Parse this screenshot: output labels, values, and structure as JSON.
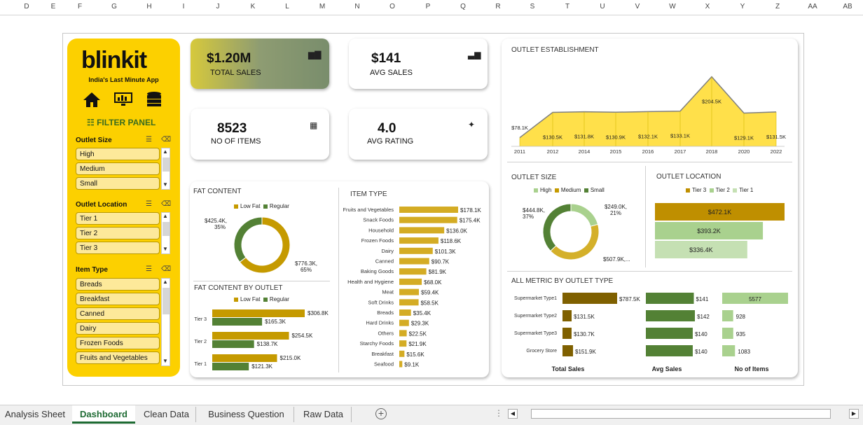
{
  "columns": [
    "D",
    "E",
    "F",
    "G",
    "H",
    "I",
    "J",
    "K",
    "L",
    "M",
    "N",
    "O",
    "P",
    "Q",
    "R",
    "S",
    "T",
    "U",
    "V",
    "W",
    "X",
    "Y",
    "Z",
    "AA",
    "AB"
  ],
  "brand": {
    "name": "blinkit",
    "tagline": "India's Last Minute App",
    "filter_panel": "FILTER PANEL"
  },
  "kpis": {
    "total_sales": {
      "value": "$1.20M",
      "label": "TOTAL SALES"
    },
    "avg_sales": {
      "value": "$141",
      "label": "AVG SALES"
    },
    "items": {
      "value": "8523",
      "label": "NO OF ITEMS"
    },
    "avg_rating": {
      "value": "4.0",
      "label": "AVG RATING"
    }
  },
  "slicers": {
    "outlet_size": {
      "title": "Outlet Size",
      "items": [
        "High",
        "Medium",
        "Small"
      ]
    },
    "outlet_location": {
      "title": "Outlet Location",
      "items": [
        "Tier 1",
        "Tier 2",
        "Tier 3"
      ]
    },
    "item_type": {
      "title": "Item Type",
      "items": [
        "Breads",
        "Breakfast",
        "Canned",
        "Dairy",
        "Frozen Foods",
        "Fruits and Vegetables"
      ]
    }
  },
  "colors": {
    "gold": "#c59a00",
    "green": "#538135",
    "dark": "#7f6000",
    "light_green": "#a9d18e",
    "pale_green": "#c5e0b3",
    "yellow": "#fcd000"
  },
  "chart_data": [
    {
      "id": "outlet_establishment",
      "type": "area",
      "title": "OUTLET ESTABLISHMENT",
      "x": [
        2011,
        2012,
        2014,
        2015,
        2016,
        2017,
        2018,
        2020,
        2022
      ],
      "values": [
        78.1,
        130.5,
        131.8,
        130.9,
        132.1,
        133.1,
        204.5,
        129.1,
        131.5
      ],
      "labels": [
        "$78.1K",
        "$130.5K",
        "$131.8K",
        "$130.9K",
        "$132.1K",
        "$133.1K",
        "$204.5K",
        "$129.1K",
        "$131.5K"
      ]
    },
    {
      "id": "fat_content",
      "type": "pie",
      "title": "FAT CONTENT",
      "legend": [
        "Low Fat",
        "Regular"
      ],
      "values": [
        776.3,
        425.4
      ],
      "labels": [
        "$776.3K, 65%",
        "$425.4K, 35%"
      ]
    },
    {
      "id": "item_type",
      "type": "bar",
      "title": "ITEM TYPE",
      "categories": [
        "Fruits and Vegetables",
        "Snack Foods",
        "Household",
        "Frozen Foods",
        "Dairy",
        "Canned",
        "Baking Goods",
        "Health and Hygiene",
        "Meat",
        "Soft Drinks",
        "Breads",
        "Hard Drinks",
        "Others",
        "Starchy Foods",
        "Breakfast",
        "Seafood"
      ],
      "values": [
        178.1,
        175.4,
        136.0,
        118.6,
        101.3,
        90.7,
        81.9,
        68.0,
        59.4,
        58.5,
        35.4,
        29.3,
        22.5,
        21.9,
        15.6,
        9.1
      ],
      "labels": [
        "$178.1K",
        "$175.4K",
        "$136.0K",
        "$118.6K",
        "$101.3K",
        "$90.7K",
        "$81.9K",
        "$68.0K",
        "$59.4K",
        "$58.5K",
        "$35.4K",
        "$29.3K",
        "$22.5K",
        "$21.9K",
        "$15.6K",
        "$9.1K"
      ]
    },
    {
      "id": "fat_by_outlet",
      "type": "bar",
      "title": "FAT CONTENT BY OUTLET",
      "categories": [
        "Tier 3",
        "Tier 2",
        "Tier 1"
      ],
      "series": [
        {
          "name": "Low Fat",
          "values": [
            306.8,
            254.5,
            215.0
          ],
          "labels": [
            "$306.8K",
            "$254.5K",
            "$215.0K"
          ]
        },
        {
          "name": "Regular",
          "values": [
            165.3,
            138.7,
            121.3
          ],
          "labels": [
            "$165.3K",
            "$138.7K",
            "$121.3K"
          ]
        }
      ]
    },
    {
      "id": "outlet_size",
      "type": "pie",
      "title": "OUTLET SIZE",
      "legend": [
        "High",
        "Medium",
        "Small"
      ],
      "values": [
        249.0,
        507.9,
        444.8
      ],
      "labels": [
        "$249.0K, 21%",
        "$507.9K,...",
        "$444.8K, 37%"
      ]
    },
    {
      "id": "outlet_location",
      "type": "bar",
      "title": "OUTLET LOCATION",
      "legend": [
        "Tier 3",
        "Tier 2",
        "Tier 1"
      ],
      "categories": [
        "Tier 3",
        "Tier 2",
        "Tier 1"
      ],
      "values": [
        472.1,
        393.2,
        336.4
      ],
      "labels": [
        "$472.1K",
        "$393.2K",
        "$336.4K"
      ]
    },
    {
      "id": "metric_by_outlet",
      "type": "table",
      "title": "ALL METRIC BY OUTLET TYPE",
      "rows": [
        "Supermarket Type1",
        "Supermarket Type2",
        "Supermarket Type3",
        "Grocery Store"
      ],
      "columns": [
        "Total Sales",
        "Avg Sales",
        "No of Items"
      ],
      "total_sales": [
        787.5,
        131.5,
        130.7,
        151.9
      ],
      "total_labels": [
        "$787.5K",
        "$131.5K",
        "$130.7K",
        "$151.9K"
      ],
      "avg_sales": [
        141,
        142,
        140,
        140
      ],
      "avg_labels": [
        "$141",
        "$142",
        "$140",
        "$140"
      ],
      "items": [
        5577,
        928,
        935,
        1083
      ],
      "items_labels": [
        "5577",
        "928",
        "935",
        "1083"
      ]
    }
  ],
  "tabs": [
    "Analysis Sheet",
    "Dashboard",
    "Clean Data",
    "Business Question",
    "Raw Data"
  ]
}
